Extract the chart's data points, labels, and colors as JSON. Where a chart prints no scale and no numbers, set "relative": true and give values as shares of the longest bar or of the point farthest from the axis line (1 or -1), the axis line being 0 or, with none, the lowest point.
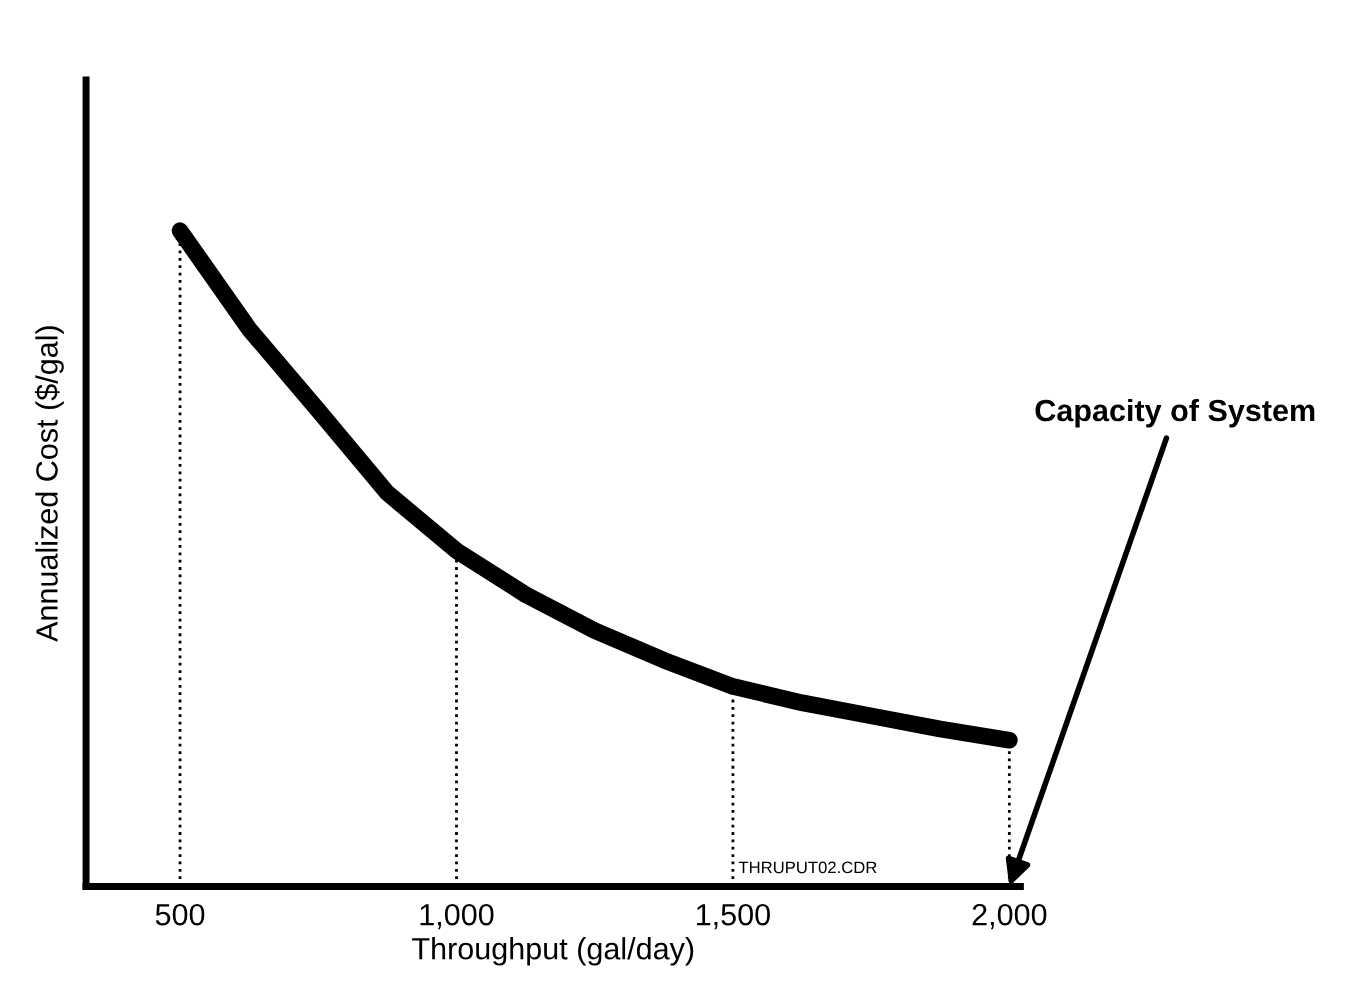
{
  "chart_data": {
    "type": "line",
    "relative": true,
    "xlabel": "Throughput (gal/day)",
    "ylabel": "Annualized Cost ($/gal)",
    "x": [
      500,
      625,
      750,
      875,
      1000,
      1125,
      1250,
      1375,
      1500,
      1625,
      1750,
      1875,
      2000
    ],
    "series": [
      {
        "color": "#000000",
        "values": [
          1,
          0.85,
          0.726,
          0.6,
          0.512,
          0.445,
          0.39,
          0.345,
          0.305,
          0.28,
          0.26,
          0.24,
          0.223
        ]
      }
    ],
    "xlim": [
      330,
      2020
    ],
    "xticks": [
      {
        "value": 500,
        "label": "500"
      },
      {
        "value": 1000,
        "label": "1,000"
      },
      {
        "value": 1500,
        "label": "1,500"
      },
      {
        "value": 2000,
        "label": "2,000"
      }
    ],
    "ref_lines": [
      {
        "axis": "x",
        "value": 500,
        "line_style": "dotted",
        "color": "#000000"
      },
      {
        "axis": "x",
        "value": 1000,
        "line_style": "dotted",
        "color": "#000000"
      },
      {
        "axis": "x",
        "value": 1500,
        "line_style": "dotted",
        "color": "#000000"
      },
      {
        "axis": "x",
        "value": 2000,
        "line_style": "dotted",
        "color": "#000000"
      }
    ],
    "annotations": [
      {
        "text": "Capacity of System",
        "x": 2000,
        "y": 0
      },
      "THRUPUT02.CDR"
    ],
    "grid": false,
    "legend": false,
    "marker": "none",
    "line_style": "solid"
  }
}
